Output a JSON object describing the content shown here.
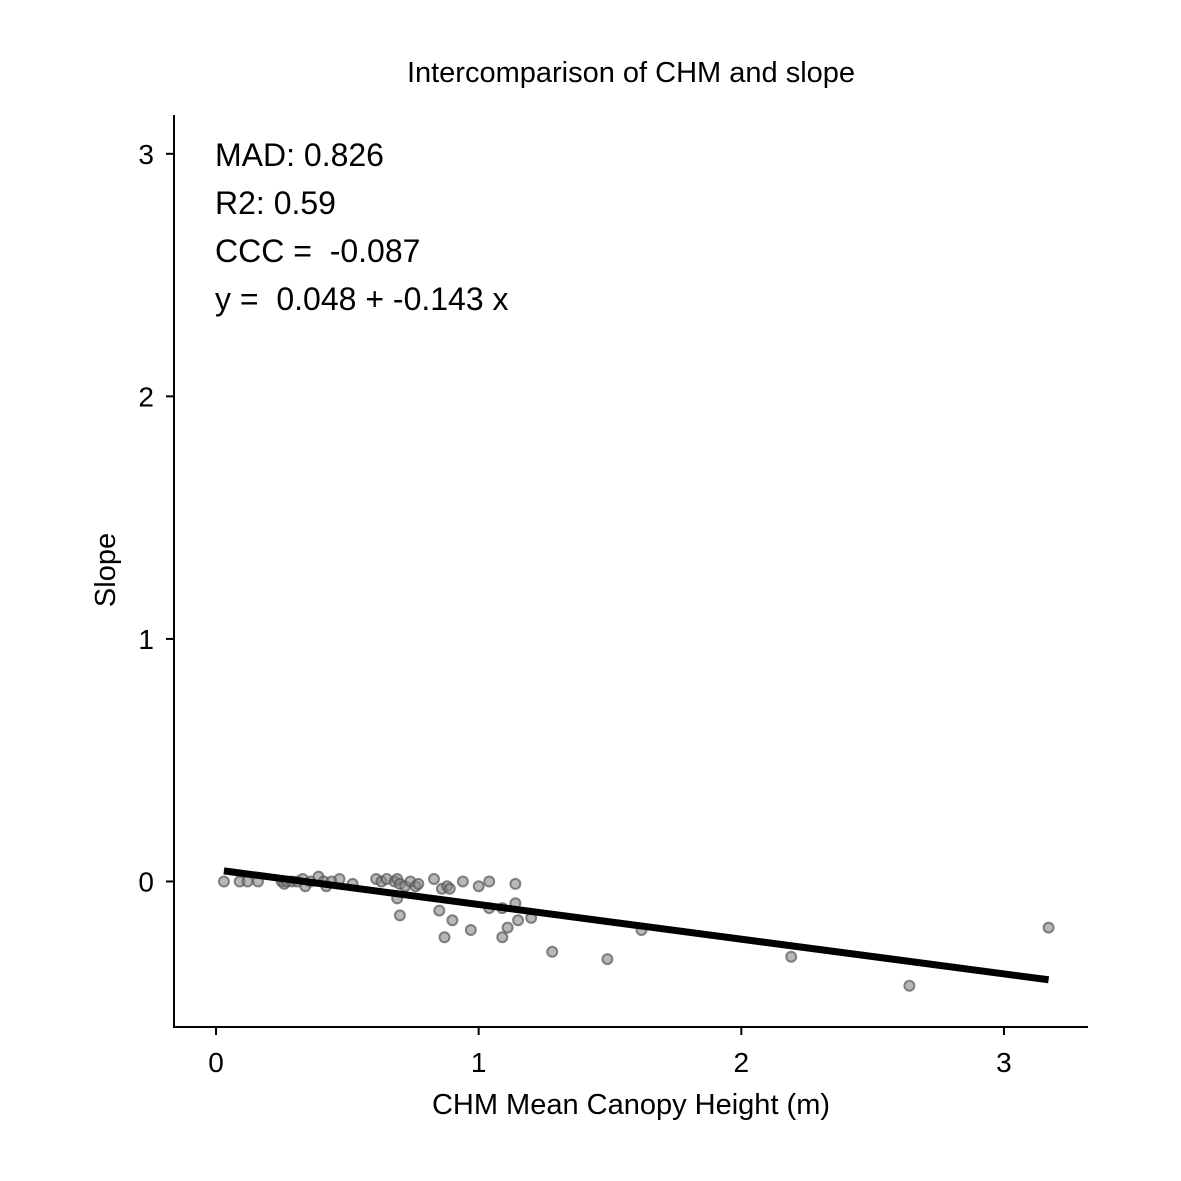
{
  "chart_data": {
    "type": "scatter",
    "title": "Intercomparison of CHM and slope",
    "xlabel": "CHM Mean Canopy Height (m)",
    "ylabel": "Slope",
    "xlim": [
      -0.16,
      3.32
    ],
    "ylim": [
      -0.6,
      3.16
    ],
    "xticks": [
      0,
      1,
      2,
      3
    ],
    "yticks": [
      0,
      1,
      2,
      3
    ],
    "grid": false,
    "annotations": [
      "MAD: 0.826",
      "R2: 0.59",
      "CCC =  -0.087",
      "y =  0.048 + -0.143 x"
    ],
    "regression": {
      "intercept": 0.048,
      "slope": -0.143,
      "x_range": [
        0.03,
        3.17
      ]
    },
    "point_color": "#888888",
    "line_color": "#000000",
    "points": [
      [
        0.03,
        0.0
      ],
      [
        0.09,
        0.0
      ],
      [
        0.12,
        0.0
      ],
      [
        0.16,
        0.0
      ],
      [
        0.25,
        0.0
      ],
      [
        0.26,
        -0.01
      ],
      [
        0.27,
        0.0
      ],
      [
        0.29,
        0.0
      ],
      [
        0.31,
        0.0
      ],
      [
        0.33,
        0.01
      ],
      [
        0.34,
        -0.02
      ],
      [
        0.36,
        0.0
      ],
      [
        0.39,
        0.02
      ],
      [
        0.41,
        0.0
      ],
      [
        0.42,
        -0.02
      ],
      [
        0.44,
        0.0
      ],
      [
        0.47,
        0.01
      ],
      [
        0.52,
        -0.01
      ],
      [
        0.61,
        0.01
      ],
      [
        0.63,
        0.0
      ],
      [
        0.65,
        0.01
      ],
      [
        0.68,
        0.0
      ],
      [
        0.69,
        0.01
      ],
      [
        0.7,
        -0.01
      ],
      [
        0.72,
        -0.02
      ],
      [
        0.74,
        0.0
      ],
      [
        0.76,
        -0.02
      ],
      [
        0.77,
        -0.01
      ],
      [
        0.83,
        0.01
      ],
      [
        0.86,
        -0.03
      ],
      [
        0.88,
        -0.02
      ],
      [
        0.89,
        -0.03
      ],
      [
        0.94,
        0.0
      ],
      [
        1.0,
        -0.02
      ],
      [
        1.04,
        0.0
      ],
      [
        1.14,
        -0.01
      ],
      [
        0.69,
        -0.07
      ],
      [
        0.7,
        -0.14
      ],
      [
        0.85,
        -0.12
      ],
      [
        0.87,
        -0.23
      ],
      [
        0.9,
        -0.16
      ],
      [
        0.97,
        -0.2
      ],
      [
        1.04,
        -0.11
      ],
      [
        1.09,
        -0.11
      ],
      [
        1.09,
        -0.23
      ],
      [
        1.11,
        -0.19
      ],
      [
        1.14,
        -0.09
      ],
      [
        1.15,
        -0.16
      ],
      [
        1.2,
        -0.15
      ],
      [
        1.28,
        -0.29
      ],
      [
        1.49,
        -0.32
      ],
      [
        1.62,
        -0.2
      ],
      [
        2.19,
        -0.31
      ],
      [
        2.64,
        -0.43
      ],
      [
        3.17,
        -0.19
      ]
    ]
  }
}
